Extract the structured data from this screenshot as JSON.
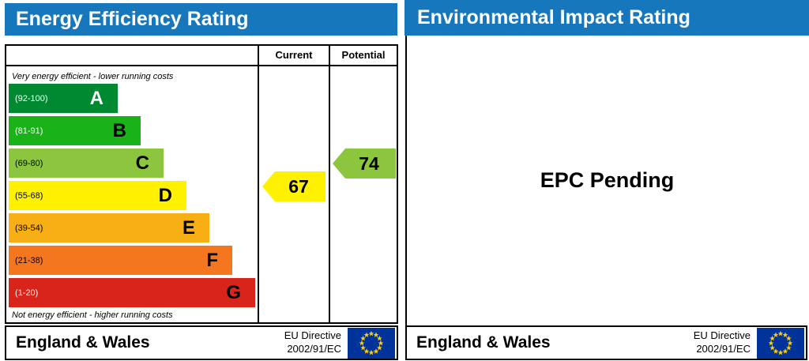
{
  "energy": {
    "title": "Energy Efficiency Rating",
    "columns": {
      "current": "Current",
      "potential": "Potential"
    },
    "top_note": "Very energy efficient - lower running costs",
    "bottom_note": "Not energy efficient - higher running costs",
    "bands": [
      {
        "letter": "A",
        "range": "(92-100)",
        "color": "#008931",
        "range_color": "#ffffff",
        "letter_color": "#ffffff"
      },
      {
        "letter": "B",
        "range": "(81-91)",
        "color": "#19b219",
        "range_color": "#ffffff",
        "letter_color": "#000000"
      },
      {
        "letter": "C",
        "range": "(69-80)",
        "color": "#8cc63e",
        "range_color": "#000000",
        "letter_color": "#000000"
      },
      {
        "letter": "D",
        "range": "(55-68)",
        "color": "#fff100",
        "range_color": "#000000",
        "letter_color": "#000000"
      },
      {
        "letter": "E",
        "range": "(39-54)",
        "color": "#f8af16",
        "range_color": "#000000",
        "letter_color": "#000000"
      },
      {
        "letter": "F",
        "range": "(21-38)",
        "color": "#f4771f",
        "range_color": "#000000",
        "letter_color": "#000000"
      },
      {
        "letter": "G",
        "range": "(1-20)",
        "color": "#d9241c",
        "range_color": "#ffffff",
        "letter_color": "#000000"
      }
    ],
    "current": {
      "label": "67",
      "band": "D",
      "color": "#fff100"
    },
    "potential": {
      "label": "74",
      "band": "C",
      "color": "#8cc63e"
    },
    "footer": {
      "region": "England & Wales",
      "eu_line1": "EU Directive",
      "eu_line2": "2002/91/EC"
    }
  },
  "environmental": {
    "title": "Environmental Impact Rating",
    "status": "EPC Pending",
    "footer": {
      "region": "England & Wales",
      "eu_line1": "EU Directive",
      "eu_line2": "2002/91/EC"
    }
  },
  "colors": {
    "header_blue": "#1777bd",
    "eu_flag_blue": "#003399",
    "eu_star_yellow": "#ffcc00"
  },
  "chart_data": {
    "type": "bar",
    "title": "Energy Efficiency Rating",
    "categories": [
      "A (92-100)",
      "B (81-91)",
      "C (69-80)",
      "D (55-68)",
      "E (39-54)",
      "F (21-38)",
      "G (1-20)"
    ],
    "band_colors": [
      "#008931",
      "#19b219",
      "#8cc63e",
      "#fff100",
      "#f8af16",
      "#f4771f",
      "#d9241c"
    ],
    "series": [
      {
        "name": "Current",
        "values": [
          67
        ],
        "band": "D",
        "color": "#fff100"
      },
      {
        "name": "Potential",
        "values": [
          74
        ],
        "band": "C",
        "color": "#8cc63e"
      }
    ],
    "value_range": [
      1,
      100
    ],
    "annotations": [
      "Very energy efficient - lower running costs",
      "Not energy efficient - higher running costs"
    ],
    "legend_position": "top-columns",
    "grid": false
  }
}
